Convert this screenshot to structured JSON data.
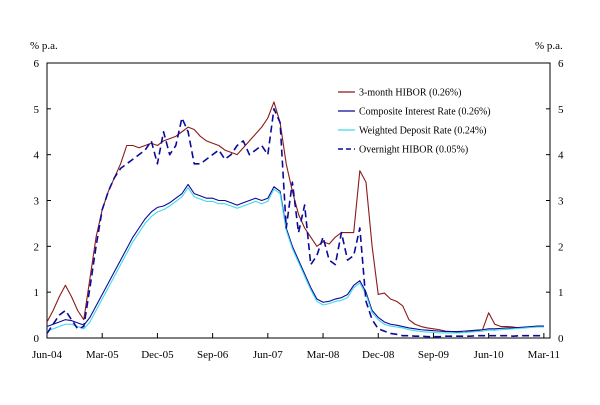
{
  "chart_data": {
    "type": "line",
    "title": "",
    "ylabel_left": "% p.a.",
    "ylabel_right": "% p.a.",
    "ylim": [
      0,
      6
    ],
    "yticks": [
      0,
      1,
      2,
      3,
      4,
      5,
      6
    ],
    "xlim": [
      0,
      82
    ],
    "xticks": [
      {
        "index": 0,
        "label": "Jun-04"
      },
      {
        "index": 9,
        "label": "Mar-05"
      },
      {
        "index": 18,
        "label": "Dec-05"
      },
      {
        "index": 27,
        "label": "Sep-06"
      },
      {
        "index": 36,
        "label": "Jun-07"
      },
      {
        "index": 45,
        "label": "Mar-08"
      },
      {
        "index": 54,
        "label": "Dec-08"
      },
      {
        "index": 63,
        "label": "Sep-09"
      },
      {
        "index": 72,
        "label": "Jun-10"
      },
      {
        "index": 81,
        "label": "Mar-11"
      }
    ],
    "grid": false,
    "legend_position": "top-right",
    "series": [
      {
        "name": "3-month HIBOR (0.26%)",
        "color": "#8B1A1A",
        "dash": "solid",
        "values": [
          0.35,
          0.6,
          0.9,
          1.15,
          0.9,
          0.6,
          0.4,
          1.3,
          2.2,
          2.8,
          3.2,
          3.5,
          3.8,
          4.2,
          4.2,
          4.15,
          4.2,
          4.25,
          4.2,
          4.3,
          4.35,
          4.4,
          4.5,
          4.6,
          4.55,
          4.4,
          4.3,
          4.25,
          4.2,
          4.1,
          4.05,
          4.0,
          4.15,
          4.3,
          4.45,
          4.6,
          4.8,
          5.15,
          4.7,
          3.8,
          3.2,
          2.7,
          2.4,
          2.2,
          2.0,
          2.1,
          2.05,
          2.2,
          2.3,
          2.3,
          2.3,
          3.65,
          3.4,
          2.0,
          0.95,
          0.98,
          0.85,
          0.8,
          0.7,
          0.4,
          0.3,
          0.25,
          0.22,
          0.2,
          0.18,
          0.15,
          0.14,
          0.13,
          0.12,
          0.14,
          0.15,
          0.18,
          0.55,
          0.3,
          0.25,
          0.25,
          0.24,
          0.22,
          0.24,
          0.24,
          0.25,
          0.26
        ]
      },
      {
        "name": "Composite Interest Rate (0.26%)",
        "color": "#0A0A9A",
        "dash": "solid",
        "values": [
          0.25,
          0.3,
          0.35,
          0.4,
          0.38,
          0.33,
          0.28,
          0.45,
          0.7,
          0.95,
          1.2,
          1.45,
          1.7,
          1.95,
          2.2,
          2.4,
          2.6,
          2.75,
          2.85,
          2.88,
          2.95,
          3.05,
          3.15,
          3.35,
          3.15,
          3.1,
          3.05,
          3.05,
          3.0,
          3.0,
          2.95,
          2.9,
          2.95,
          3.0,
          3.05,
          3.0,
          3.05,
          3.3,
          3.2,
          2.4,
          2.0,
          1.7,
          1.4,
          1.1,
          0.85,
          0.78,
          0.8,
          0.85,
          0.88,
          0.95,
          1.15,
          1.25,
          1.0,
          0.6,
          0.45,
          0.35,
          0.3,
          0.28,
          0.25,
          0.22,
          0.2,
          0.18,
          0.17,
          0.16,
          0.15,
          0.14,
          0.14,
          0.14,
          0.15,
          0.16,
          0.17,
          0.18,
          0.2,
          0.2,
          0.21,
          0.22,
          0.22,
          0.23,
          0.24,
          0.25,
          0.26,
          0.26
        ]
      },
      {
        "name": "Weighted Deposit Rate (0.24%)",
        "color": "#3FD9E8",
        "dash": "solid",
        "values": [
          0.15,
          0.2,
          0.25,
          0.3,
          0.3,
          0.25,
          0.2,
          0.35,
          0.6,
          0.85,
          1.1,
          1.35,
          1.6,
          1.85,
          2.1,
          2.3,
          2.5,
          2.65,
          2.75,
          2.8,
          2.88,
          2.98,
          3.08,
          3.28,
          3.08,
          3.03,
          2.98,
          2.98,
          2.93,
          2.93,
          2.88,
          2.83,
          2.88,
          2.93,
          2.98,
          2.93,
          2.98,
          3.25,
          3.15,
          2.35,
          1.95,
          1.65,
          1.35,
          1.05,
          0.8,
          0.72,
          0.75,
          0.8,
          0.82,
          0.88,
          1.1,
          1.2,
          0.95,
          0.55,
          0.4,
          0.3,
          0.26,
          0.24,
          0.22,
          0.18,
          0.16,
          0.14,
          0.13,
          0.12,
          0.11,
          0.11,
          0.11,
          0.11,
          0.12,
          0.13,
          0.14,
          0.15,
          0.17,
          0.17,
          0.18,
          0.19,
          0.2,
          0.21,
          0.22,
          0.23,
          0.24,
          0.24
        ]
      },
      {
        "name": "Overnight HIBOR (0.05%)",
        "color": "#0A0A9A",
        "dash": "dashed",
        "values": [
          0.1,
          0.3,
          0.5,
          0.6,
          0.4,
          0.2,
          0.25,
          1.1,
          2.0,
          2.8,
          3.2,
          3.5,
          3.7,
          3.8,
          3.9,
          4.0,
          4.1,
          4.3,
          3.8,
          4.5,
          4.0,
          4.2,
          4.8,
          4.5,
          3.8,
          3.8,
          3.9,
          4.0,
          4.1,
          3.9,
          4.0,
          4.2,
          4.3,
          4.0,
          4.1,
          4.2,
          4.0,
          5.0,
          4.7,
          2.4,
          3.4,
          2.3,
          2.9,
          1.6,
          1.8,
          2.2,
          1.7,
          1.6,
          2.3,
          1.7,
          1.8,
          2.4,
          0.8,
          0.4,
          0.2,
          0.15,
          0.1,
          0.08,
          0.05,
          0.05,
          0.04,
          0.04,
          0.03,
          0.03,
          0.03,
          0.04,
          0.04,
          0.04,
          0.04,
          0.04,
          0.05,
          0.05,
          0.05,
          0.05,
          0.05,
          0.05,
          0.04,
          0.05,
          0.05,
          0.05,
          0.05,
          0.05
        ]
      }
    ]
  }
}
